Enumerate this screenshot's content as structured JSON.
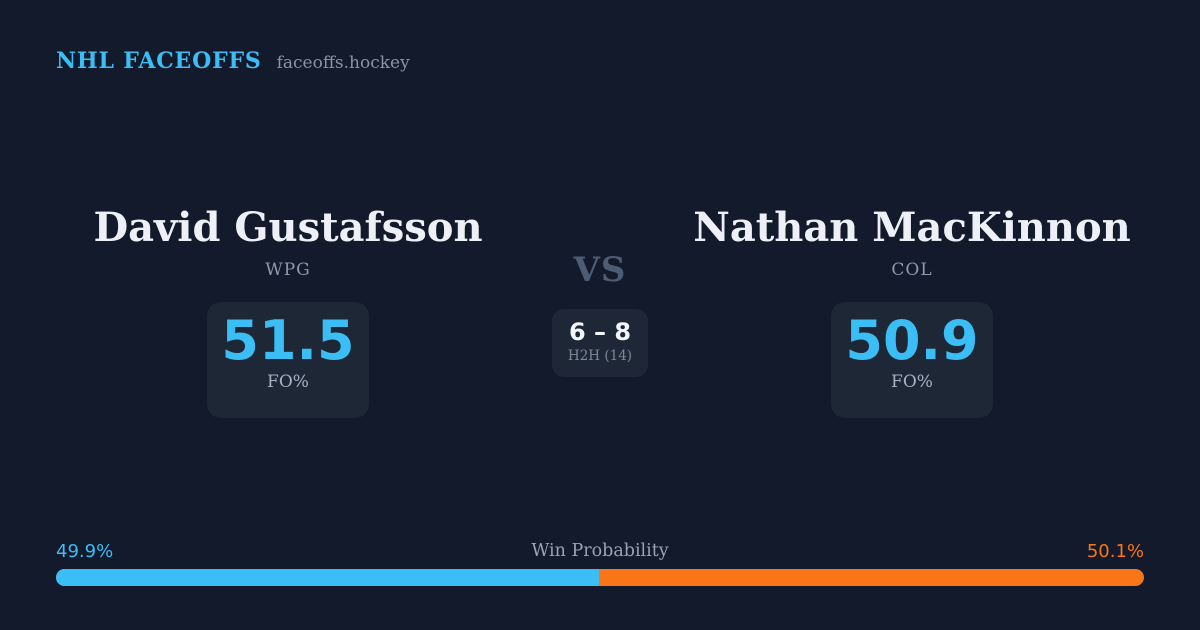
{
  "header": {
    "title": "NHL FACEOFFS",
    "subtitle": "faceoffs.hockey"
  },
  "matchup": {
    "vs_label": "VS",
    "h2h": {
      "score": "6 – 8",
      "label": "H2H (14)"
    },
    "players": [
      {
        "name": "David Gustafsson",
        "team": "WPG",
        "stat_value": "51.5",
        "stat_label": "FO%"
      },
      {
        "name": "Nathan MacKinnon",
        "team": "COL",
        "stat_value": "50.9",
        "stat_label": "FO%"
      }
    ]
  },
  "win_probability": {
    "title": "Win Probability",
    "left_label": "49.9%",
    "right_label": "50.1%",
    "left_width_pct": 49.9,
    "right_width_pct": 50.1
  },
  "colors": {
    "background": "#121a2b",
    "card": "#1d2736",
    "accent_blue": "#3bbdf6",
    "accent_orange": "#f97616"
  }
}
